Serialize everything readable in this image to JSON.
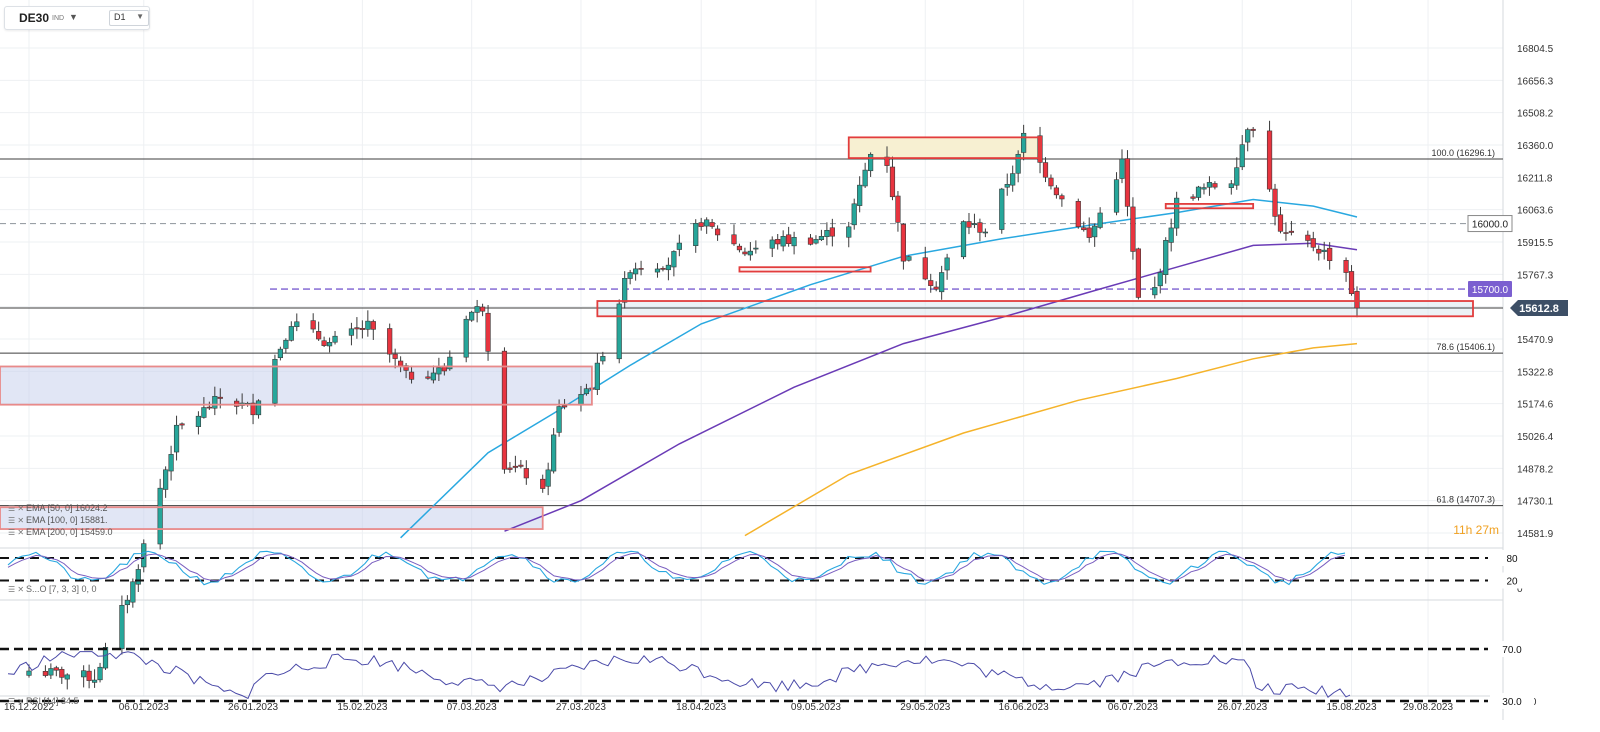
{
  "symbol": {
    "name": "DE30",
    "sub": "IND",
    "timeframe": "D1"
  },
  "colors": {
    "up": "#26a69a",
    "down": "#e8343f",
    "ema50": "#29a8e0",
    "ema100": "#6a3bb6",
    "ema200": "#f5b32a",
    "zone_red": "#e23d3d",
    "zone_yellow": "#f7f0d2",
    "zone_blue": "#dde3f3",
    "dashed_purple": "#7b5fd0",
    "price_tag": "#3d4f66"
  },
  "price_axis": {
    "ticks": [
      "16804.5",
      "16656.3",
      "16508.2",
      "16360.0",
      "16211.8",
      "16063.6",
      "15915.5",
      "15767.3",
      "15619.1",
      "15470.9",
      "15322.8",
      "15174.6",
      "15026.4",
      "14878.2",
      "14730.1",
      "14581.9"
    ],
    "current_price": "15612.8",
    "label_16000": "16000.0",
    "label_15700": "15700.0"
  },
  "date_axis": [
    "16.12.2022",
    "06.01.2023",
    "26.01.2023",
    "15.02.2023",
    "07.03.2023",
    "27.03.2023",
    "18.04.2023",
    "09.05.2023",
    "29.05.2023",
    "16.06.2023",
    "06.07.2023",
    "26.07.2023",
    "15.08.2023",
    "29.08.2023"
  ],
  "fib_labels": {
    "f100": "100.0 (16296.1)",
    "f786": "78.6 (15406.1)",
    "f618": "61.8 (14707.3)"
  },
  "countdown": "11h 27m",
  "legend": {
    "ema50": "EMA [50, 0] 16024.2",
    "ema100": "EMA [100, 0] 15881.",
    "ema200": "EMA [200, 0] 15459.0",
    "stoch": "S...O [7, 3, 3] 0, 0",
    "rsi": "RSI [14] 34.5"
  },
  "stoch_axis": {
    "l80": "80",
    "l20": "20",
    "l0": "0"
  },
  "rsi_axis": {
    "l70": "70.0",
    "l30": "30.0",
    "l30b": "30.0"
  },
  "chart_data": [
    {
      "type": "candlestick",
      "title": "DE30 D1",
      "ylim": [
        14560,
        16880
      ],
      "x_range": [
        "16.12.2022",
        "18.08.2023"
      ],
      "ohlc_sample_recent": [
        {
          "date": "2023-08-14",
          "o": 15860,
          "h": 15880,
          "l": 15750,
          "c": 15780
        },
        {
          "date": "2023-08-15",
          "o": 15770,
          "h": 15785,
          "l": 15660,
          "c": 15690
        },
        {
          "date": "2023-08-16",
          "o": 15690,
          "h": 15700,
          "l": 15590,
          "c": 15612.8
        }
      ],
      "overlays": [
        {
          "name": "EMA [50, 0] 16024.2",
          "last": 16024.2
        },
        {
          "name": "EMA [100, 0] 15881.",
          "last": 15881
        },
        {
          "name": "EMA [200, 0] 15459.0",
          "last": 15459.0
        }
      ],
      "levels": [
        {
          "label": "100.0 (16296.1)",
          "value": 16296.1
        },
        {
          "label": "78.6 (15406.1)",
          "value": 15406.1
        },
        {
          "label": "61.8 (14707.3)",
          "value": 14707.3
        },
        {
          "label": "16000.0",
          "value": 16000.0
        },
        {
          "label": "15700.0",
          "value": 15700.0
        }
      ],
      "zones": [
        {
          "color": "yellow",
          "from": 16300,
          "to": 16395
        },
        {
          "color": "red",
          "from": 15575,
          "to": 15645
        },
        {
          "color": "blue",
          "from": 15160,
          "to": 15340
        }
      ]
    },
    {
      "type": "line",
      "title": "S...O [7, 3, 3]",
      "ylim": [
        0,
        100
      ],
      "levels": [
        80,
        20
      ]
    },
    {
      "type": "line",
      "title": "RSI [14]",
      "ylim": [
        30,
        70
      ],
      "last": 34.5,
      "levels": [
        70,
        30
      ]
    }
  ]
}
